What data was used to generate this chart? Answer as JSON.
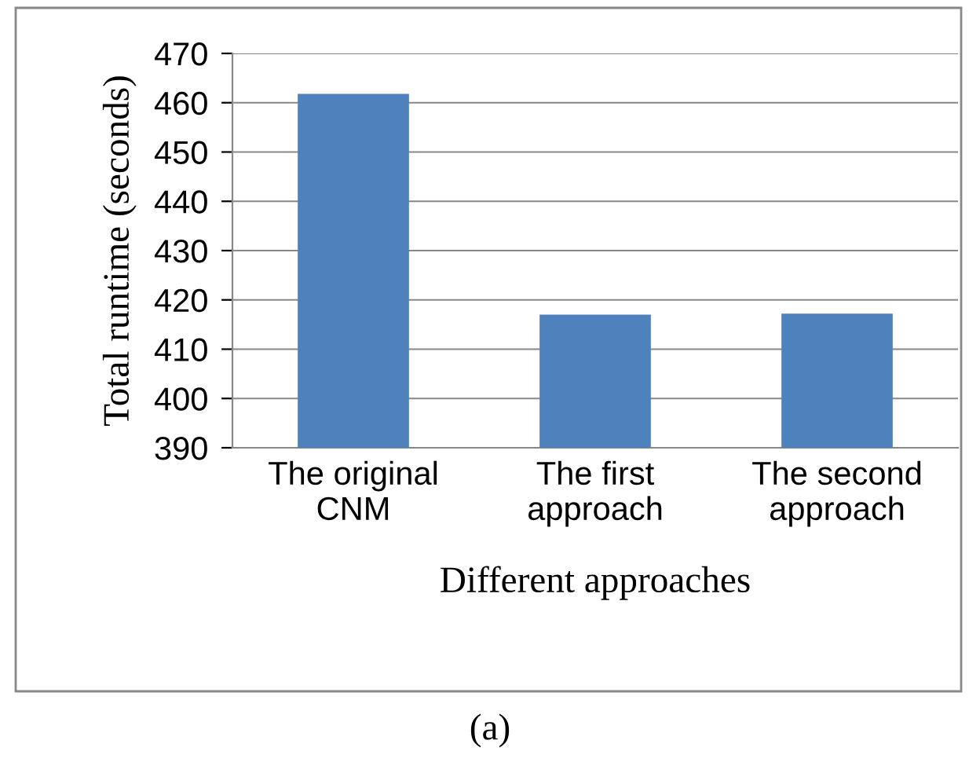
{
  "chart_data": {
    "type": "bar",
    "xlabel": "Different approaches",
    "ylabel": "Total runtime (seconds)",
    "categories": [
      "The original\nCNM",
      "The first\napproach",
      "The second\napproach"
    ],
    "values": [
      461.8,
      417,
      417.2
    ],
    "color": "#4f81bd",
    "ylim": [
      390,
      470
    ],
    "yticks": [
      390,
      400,
      410,
      420,
      430,
      440,
      450,
      460,
      470
    ],
    "grid": "y",
    "annotations": [
      "(a)"
    ]
  }
}
